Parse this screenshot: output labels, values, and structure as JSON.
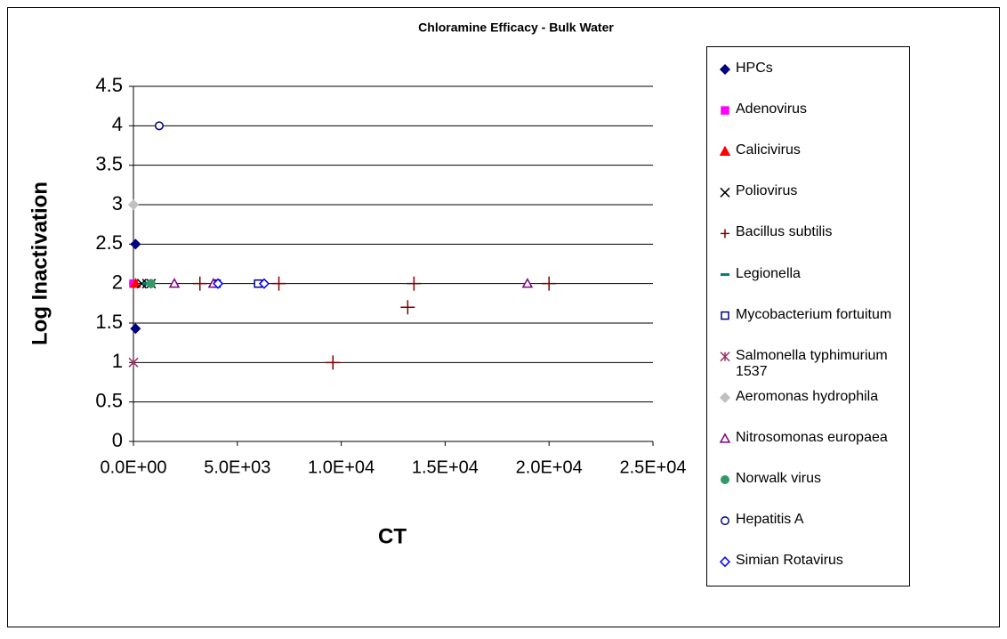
{
  "chart_data": {
    "type": "scatter",
    "title": "Chloramine Efficacy - Bulk Water",
    "xlabel": "CT",
    "ylabel": "Log Inactivation",
    "xlim": [
      0,
      25000
    ],
    "ylim": [
      0,
      4.5
    ],
    "xticks": [
      {
        "value": 0,
        "label": "0.0E+00"
      },
      {
        "value": 5000,
        "label": "5.0E+03"
      },
      {
        "value": 10000,
        "label": "1.0E+04"
      },
      {
        "value": 15000,
        "label": "1.5E+04"
      },
      {
        "value": 20000,
        "label": "2.0E+04"
      },
      {
        "value": 25000,
        "label": "2.5E+04"
      }
    ],
    "yticks": [
      0,
      0.5,
      1,
      1.5,
      2,
      2.5,
      3,
      3.5,
      4,
      4.5
    ],
    "grid": true,
    "legend": "right",
    "series": [
      {
        "name": "HPCs",
        "color": "#000080",
        "marker": "diamond",
        "x": [
          100,
          100
        ],
        "values": [
          2.5,
          1.43
        ]
      },
      {
        "name": "Adenovirus",
        "color": "#ff00ff",
        "marker": "square",
        "x": [
          0
        ],
        "values": [
          2
        ]
      },
      {
        "name": "Calicivirus",
        "color": "#ff0000",
        "marker": "triangle",
        "x": [
          100
        ],
        "values": [
          2
        ]
      },
      {
        "name": "Poliovirus",
        "color": "#000000",
        "marker": "x",
        "x": [
          400,
          650,
          850
        ],
        "values": [
          2,
          2,
          2
        ]
      },
      {
        "name": "Bacillus subtilis",
        "color": "#800000",
        "marker": "plus",
        "x": [
          3200,
          7000,
          9600,
          13200,
          13500,
          20000
        ],
        "values": [
          2,
          2,
          1,
          1.7,
          2,
          2
        ]
      },
      {
        "name": "Legionella",
        "color": "#008080",
        "marker": "dash",
        "x": [
          650
        ],
        "values": [
          2
        ]
      },
      {
        "name": "Mycobacterium fortuitum",
        "color": "#000080",
        "marker": "open-square",
        "x": [
          4000,
          6000
        ],
        "values": [
          2,
          2
        ]
      },
      {
        "name": "Salmonella typhimurium 1537",
        "color": "#993366",
        "marker": "star",
        "x": [
          0
        ],
        "values": [
          1
        ]
      },
      {
        "name": "Aeromonas hydrophila",
        "color": "#c0c0c0",
        "marker": "diamond",
        "x": [
          0
        ],
        "values": [
          3
        ]
      },
      {
        "name": "Nitrosomonas europaea",
        "color": "#800080",
        "marker": "open-triangle",
        "x": [
          1970,
          3850,
          18960
        ],
        "values": [
          2,
          2,
          2
        ]
      },
      {
        "name": "Norwalk virus",
        "color": "#339966",
        "marker": "circle",
        "x": [
          850
        ],
        "values": [
          2
        ]
      },
      {
        "name": "Hepatitis A",
        "color": "#000080",
        "marker": "open-circle",
        "x": [
          1240
        ],
        "values": [
          4
        ]
      },
      {
        "name": "Simian Rotavirus",
        "color": "#0000ff",
        "marker": "open-diamond",
        "x": [
          4070,
          6290
        ],
        "values": [
          2,
          2
        ]
      }
    ]
  }
}
